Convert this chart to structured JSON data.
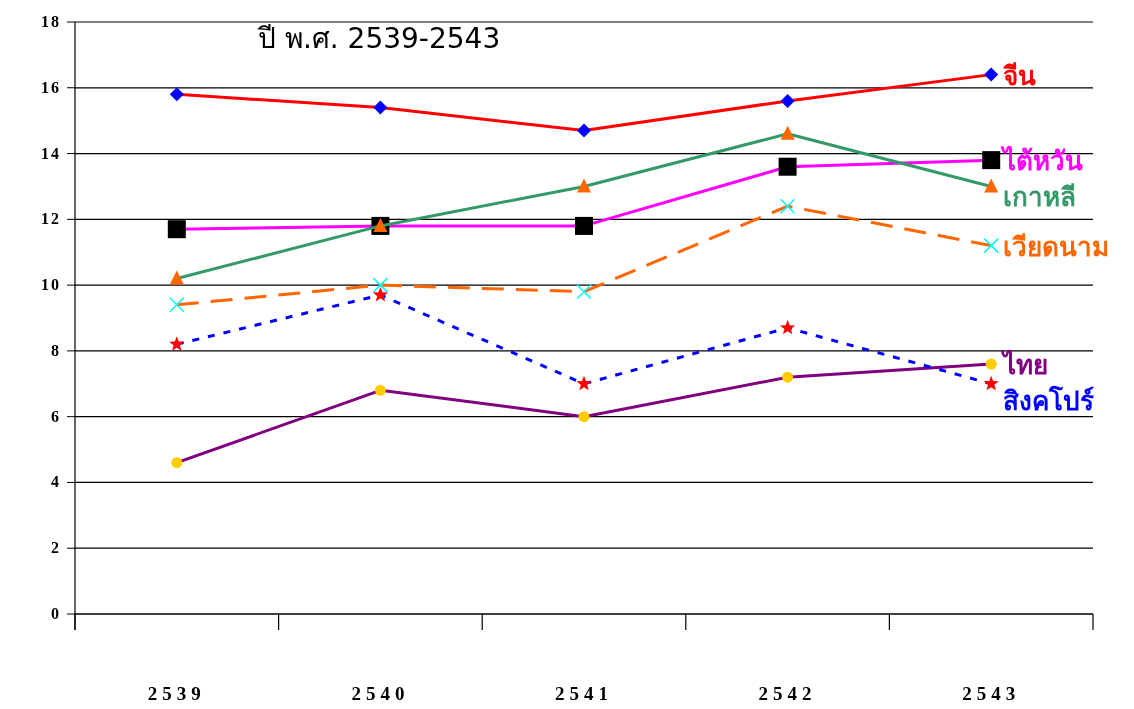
{
  "chart_data": {
    "type": "line",
    "title": "ปี พ.ศ. 2539-2543",
    "categories": [
      "2539",
      "2540",
      "2541",
      "2542",
      "2543"
    ],
    "series": [
      {
        "name": "จีน",
        "color": "#ff0000",
        "colors": [
          "#0000ff",
          "#0000ff",
          "#0000ff",
          "#0000ff",
          "#0000ff"
        ],
        "marker": "diamond",
        "line_style": "solid",
        "values": [
          15.8,
          15.4,
          14.7,
          15.6,
          16.4
        ]
      },
      {
        "name": "ไต้หวัน",
        "color": "#ff00ff",
        "colors": [
          "#000000",
          "#000000",
          "#000000",
          "#000000",
          "#000000"
        ],
        "marker": "square",
        "line_style": "solid",
        "values": [
          11.7,
          11.8,
          11.8,
          13.6,
          13.8
        ]
      },
      {
        "name": "เกาหลี",
        "color": "#339966",
        "colors": [
          "#ff6600",
          "#ff6600",
          "#ff6600",
          "#ff6600",
          "#ff6600"
        ],
        "marker": "triangle",
        "line_style": "solid",
        "values": [
          10.2,
          11.8,
          13.0,
          14.6,
          13.0
        ]
      },
      {
        "name": "เวียดนาม",
        "color": "#ff6600",
        "colors": [
          "#00ffff",
          "#00ffff",
          "#00ffff",
          "#00ffff",
          "#00ffff"
        ],
        "marker": "cross",
        "line_style": "dashed",
        "values": [
          9.4,
          10.0,
          9.8,
          12.4,
          11.2
        ]
      },
      {
        "name": "ไทย",
        "color": "#800080",
        "colors": [
          "#ffcc00",
          "#ffcc00",
          "#ffcc00",
          "#ffcc00",
          "#ffcc00"
        ],
        "marker": "circle",
        "line_style": "solid",
        "values": [
          4.6,
          6.8,
          6.0,
          7.2,
          7.6
        ]
      },
      {
        "name": "สิงคโปร์",
        "color": "#0000ff",
        "colors": [
          "#ff0000",
          "#ff0000",
          "#ff0000",
          "#ff0000",
          "#ff0000"
        ],
        "marker": "star",
        "line_style": "dotted",
        "values": [
          8.2,
          9.7,
          7.0,
          8.7,
          7.0
        ]
      }
    ],
    "ylim": [
      0,
      18
    ],
    "yticks": [
      0,
      2,
      4,
      6,
      8,
      10,
      12,
      14,
      16,
      18
    ],
    "grid": "y"
  }
}
